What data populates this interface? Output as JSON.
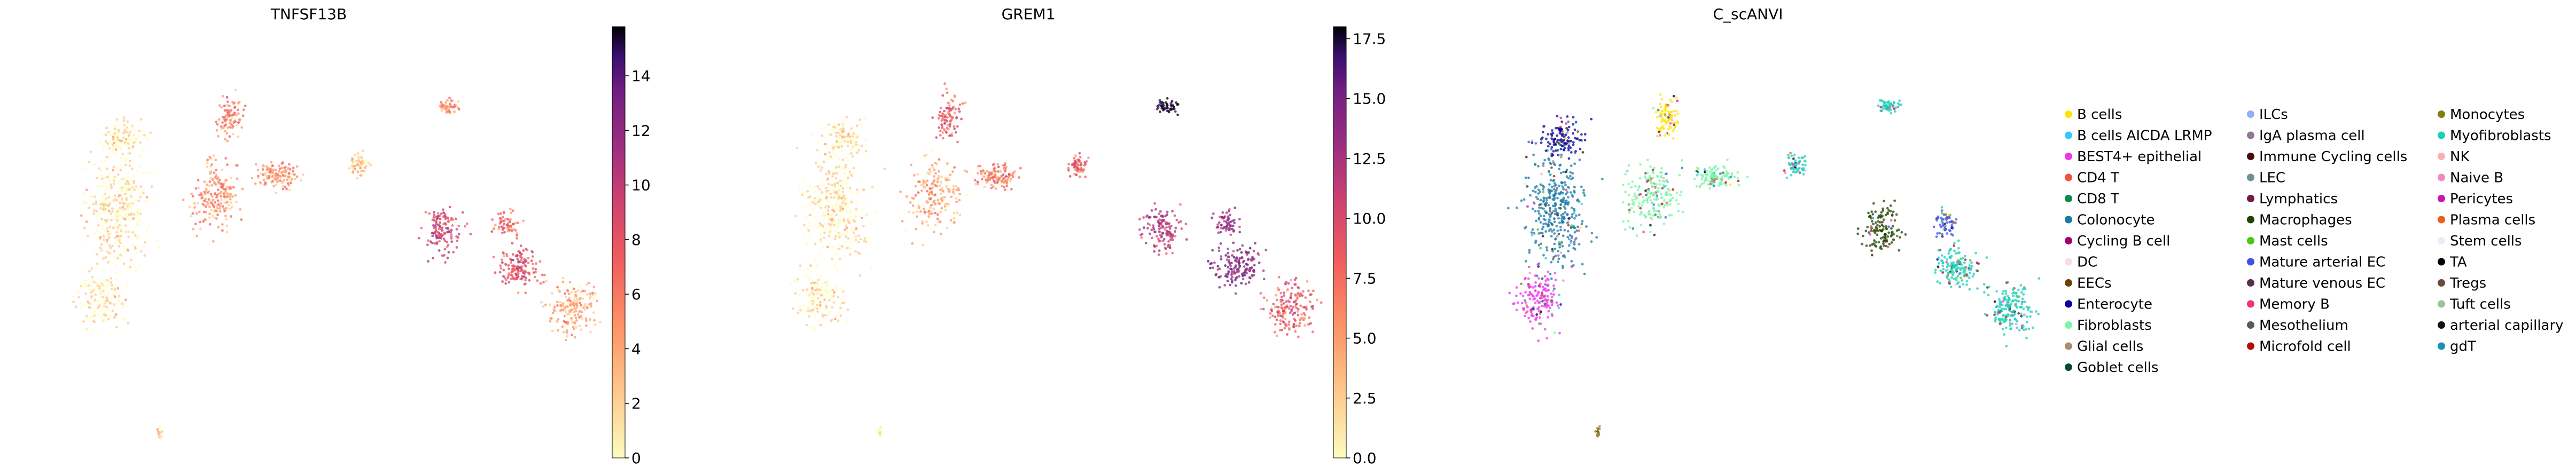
{
  "chart_data": [
    {
      "type": "scatter",
      "title": "TNFSF13B",
      "xlabel": "",
      "ylabel": "",
      "colorbar": {
        "colormap": "magma_r",
        "range": [
          0,
          15.8
        ],
        "ticks": [
          0,
          2,
          4,
          6,
          8,
          10,
          12,
          14
        ],
        "tick_labels": [
          "0",
          "2",
          "4",
          "6",
          "8",
          "10",
          "12",
          "14"
        ]
      },
      "grid": false,
      "axes_visible": false
    },
    {
      "type": "scatter",
      "title": "GREM1",
      "xlabel": "",
      "ylabel": "",
      "colorbar": {
        "colormap": "magma_r",
        "range": [
          0,
          18.0
        ],
        "ticks": [
          0,
          2.5,
          5,
          7.5,
          10,
          12.5,
          15,
          17.5
        ],
        "tick_labels": [
          "0.0",
          "2.5",
          "5.0",
          "7.5",
          "10.0",
          "12.5",
          "15.0",
          "17.5"
        ]
      },
      "grid": false,
      "axes_visible": false
    },
    {
      "type": "scatter",
      "title": "C_scANVI",
      "xlabel": "",
      "ylabel": "",
      "grid": false,
      "axes_visible": false,
      "legend_position": "right",
      "legend_columns": 3,
      "categories": [
        {
          "name": "B cells",
          "color": "#ffe400"
        },
        {
          "name": "B cells AICDA LRMP",
          "color": "#34c8ff"
        },
        {
          "name": "BEST4+ epithelial",
          "color": "#f233f0"
        },
        {
          "name": "CD4 T",
          "color": "#f5503c"
        },
        {
          "name": "CD8 T",
          "color": "#0b8c4a"
        },
        {
          "name": "Colonocyte",
          "color": "#1b79a6"
        },
        {
          "name": "Cycling B cell",
          "color": "#a40070"
        },
        {
          "name": "DC",
          "color": "#fbdde9"
        },
        {
          "name": "EECs",
          "color": "#6d4006"
        },
        {
          "name": "Enterocyte",
          "color": "#08009e"
        },
        {
          "name": "Fibroblasts",
          "color": "#79f5a7"
        },
        {
          "name": "Glial cells",
          "color": "#a88e6e"
        },
        {
          "name": "Goblet cells",
          "color": "#014d33"
        },
        {
          "name": "ILCs",
          "color": "#8fb0fa"
        },
        {
          "name": "IgA plasma cell",
          "color": "#8e7694"
        },
        {
          "name": "Immune Cycling cells",
          "color": "#4a0a0a"
        },
        {
          "name": "LEC",
          "color": "#6f9092"
        },
        {
          "name": "Lymphatics",
          "color": "#6e1c44"
        },
        {
          "name": "Macrophages",
          "color": "#1f4400"
        },
        {
          "name": "Mast cells",
          "color": "#4cc614"
        },
        {
          "name": "Mature arterial EC",
          "color": "#3f52e6"
        },
        {
          "name": "Mature venous EC",
          "color": "#53304e"
        },
        {
          "name": "Memory B",
          "color": "#f23470"
        },
        {
          "name": "Mesothelium",
          "color": "#5a5a5a"
        },
        {
          "name": "Microfold cell",
          "color": "#b50c0c"
        },
        {
          "name": "Monocytes",
          "color": "#818013"
        },
        {
          "name": "Myofibroblasts",
          "color": "#1ccfb8"
        },
        {
          "name": "NK",
          "color": "#fbb0b0"
        },
        {
          "name": "Naive B",
          "color": "#f08ac4"
        },
        {
          "name": "Pericytes",
          "color": "#c41ab4"
        },
        {
          "name": "Plasma cells",
          "color": "#e8611a"
        },
        {
          "name": "Stem cells",
          "color": "#e6eef8"
        },
        {
          "name": "TA",
          "color": "#000000"
        },
        {
          "name": "Tregs",
          "color": "#6b4a3c"
        },
        {
          "name": "Tuft cells",
          "color": "#9bc49b"
        },
        {
          "name": "arterial capillary",
          "color": "#111111"
        },
        {
          "name": "gdT",
          "color": "#1893b8"
        }
      ]
    }
  ]
}
